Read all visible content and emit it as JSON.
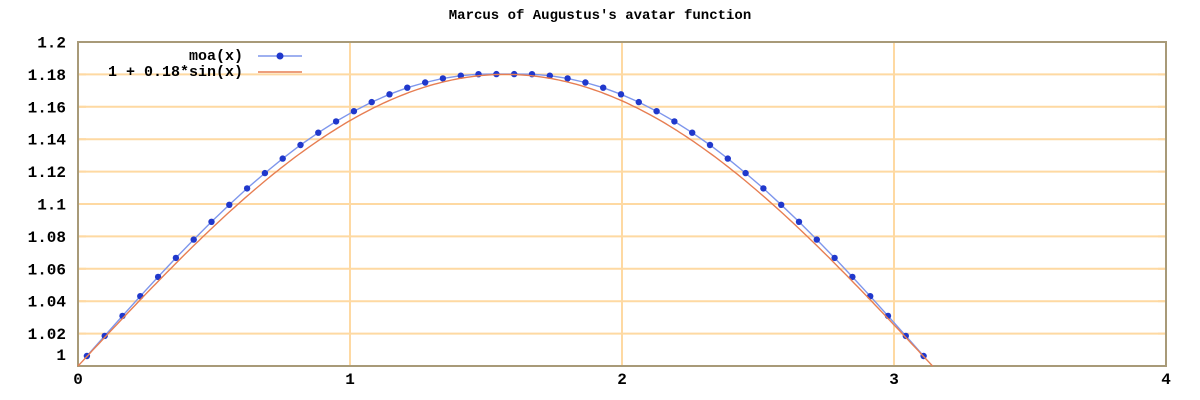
{
  "chart_data": {
    "type": "line",
    "title": "Marcus of Augustus's avatar function",
    "x_range": [
      0,
      4
    ],
    "y_range": [
      1,
      1.2
    ],
    "x_tick_labels": [
      "0",
      "1",
      "2",
      "3",
      "4"
    ],
    "x_tick_values": [
      0,
      1,
      2,
      3,
      4
    ],
    "y_tick_labels": [
      "1",
      "1.02",
      "1.04",
      "1.06",
      "1.08",
      "1.1",
      "1.12",
      "1.14",
      "1.16",
      "1.18",
      "1.2"
    ],
    "y_tick_values": [
      1,
      1.02,
      1.04,
      1.06,
      1.08,
      1.1,
      1.12,
      1.14,
      1.16,
      1.18,
      1.2
    ],
    "grid": true,
    "legend_position": "top-left",
    "colors": {
      "background": "#ffffff",
      "grid": "#fed9a2",
      "border": "#a89a78",
      "text": "#000000",
      "moa_points": "#2038cc",
      "moa_line": "#7e96ec",
      "sine_line": "#e77e52"
    },
    "series": [
      {
        "name": "moa(x)",
        "style": "linespoints",
        "point_color": "#2038cc",
        "line_color": "#7e96ec",
        "points": [
          [
            0.0327,
            1.0062
          ],
          [
            0.0982,
            1.0186
          ],
          [
            0.1636,
            1.0309
          ],
          [
            0.2291,
            1.0431
          ],
          [
            0.2945,
            1.055
          ],
          [
            0.36,
            1.0667
          ],
          [
            0.4254,
            1.078
          ],
          [
            0.4909,
            1.089
          ],
          [
            0.5563,
            1.0995
          ],
          [
            0.6218,
            1.1096
          ],
          [
            0.6872,
            1.1191
          ],
          [
            0.7527,
            1.128
          ],
          [
            0.8181,
            1.1364
          ],
          [
            0.8836,
            1.144
          ],
          [
            0.949,
            1.151
          ],
          [
            1.0145,
            1.1573
          ],
          [
            1.0799,
            1.1629
          ],
          [
            1.1454,
            1.1677
          ],
          [
            1.2108,
            1.1718
          ],
          [
            1.2763,
            1.175
          ],
          [
            1.3417,
            1.1775
          ],
          [
            1.4072,
            1.1792
          ],
          [
            1.4726,
            1.1801
          ],
          [
            1.5381,
            1.1802
          ],
          [
            1.6035,
            1.1802
          ],
          [
            1.669,
            1.1801
          ],
          [
            1.7344,
            1.1792
          ],
          [
            1.7999,
            1.1775
          ],
          [
            1.8653,
            1.175
          ],
          [
            1.9308,
            1.1718
          ],
          [
            1.9962,
            1.1677
          ],
          [
            2.0617,
            1.1629
          ],
          [
            2.1271,
            1.1573
          ],
          [
            2.1926,
            1.151
          ],
          [
            2.258,
            1.144
          ],
          [
            2.3235,
            1.1364
          ],
          [
            2.3889,
            1.128
          ],
          [
            2.4544,
            1.1191
          ],
          [
            2.5198,
            1.1096
          ],
          [
            2.5853,
            1.0995
          ],
          [
            2.6507,
            1.089
          ],
          [
            2.7162,
            1.078
          ],
          [
            2.7816,
            1.0667
          ],
          [
            2.8471,
            1.055
          ],
          [
            2.9125,
            1.0431
          ],
          [
            2.978,
            1.0309
          ],
          [
            3.0434,
            1.0186
          ],
          [
            3.1089,
            1.0062
          ]
        ]
      },
      {
        "name": "1 + 0.18*sin(x)",
        "style": "line",
        "line_color": "#e77e52",
        "function": {
          "kind": "sine",
          "offset": 1,
          "amplitude": 0.18,
          "domain": [
            0,
            3.14159
          ]
        }
      }
    ]
  }
}
